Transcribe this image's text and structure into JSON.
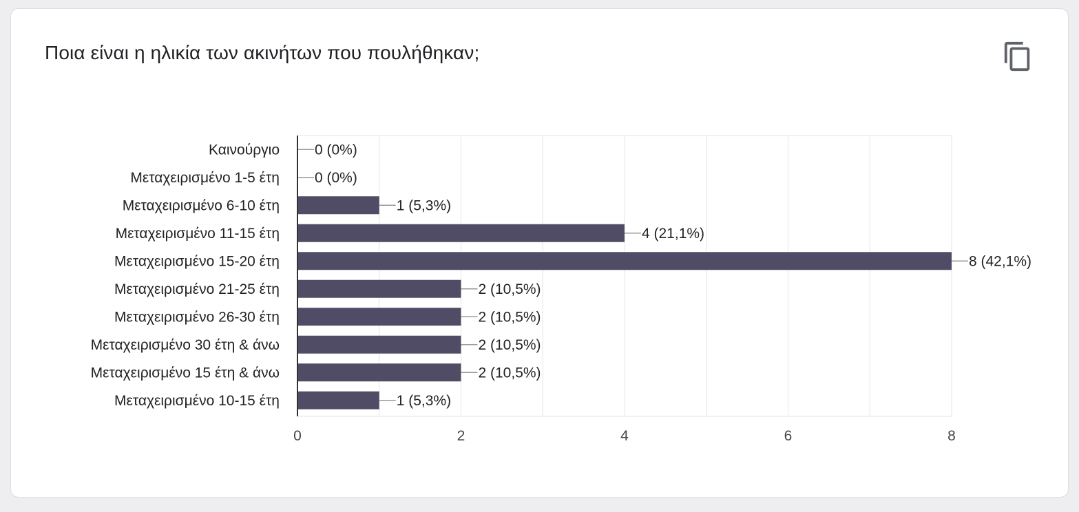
{
  "question": {
    "title": "Ποια είναι η ηλικία των ακινήτων που πουλήθηκαν;"
  },
  "toolbar": {
    "copy_icon": "copy-icon"
  },
  "colors": {
    "bar": "#514c66",
    "grid": "#e6e6e6",
    "axis": "#333333",
    "label": "#222222",
    "tick": "#444444",
    "leader": "#999999"
  },
  "chart_data": {
    "type": "bar",
    "orientation": "horizontal",
    "categories": [
      "Καινούργιο",
      "Μεταχειρισμένο 1-5 έτη",
      "Μεταχειρισμένο 6-10 έτη",
      "Μεταχειρισμένο 11-15 έτη",
      "Μεταχειρισμένο 15-20 έτη",
      "Μεταχειρισμένο 21-25 έτη",
      "Μεταχειρισμένο 26-30 έτη",
      "Μεταχειρισμένο 30 έτη & άνω",
      "Μεταχειρισμένο 15 έτη & άνω",
      "Μεταχειρισμένο 10-15 έτη"
    ],
    "values": [
      0,
      0,
      1,
      4,
      8,
      2,
      2,
      2,
      2,
      1
    ],
    "data_labels": [
      "0 (0%)",
      "0 (0%)",
      "1 (5,3%)",
      "4 (21,1%)",
      "8 (42,1%)",
      "2 (10,5%)",
      "2 (10,5%)",
      "2 (10,5%)",
      "2 (10,5%)",
      "1 (5,3%)"
    ],
    "xlim": [
      0,
      8
    ],
    "x_ticks": [
      0,
      2,
      4,
      6,
      8
    ],
    "grid": true
  }
}
